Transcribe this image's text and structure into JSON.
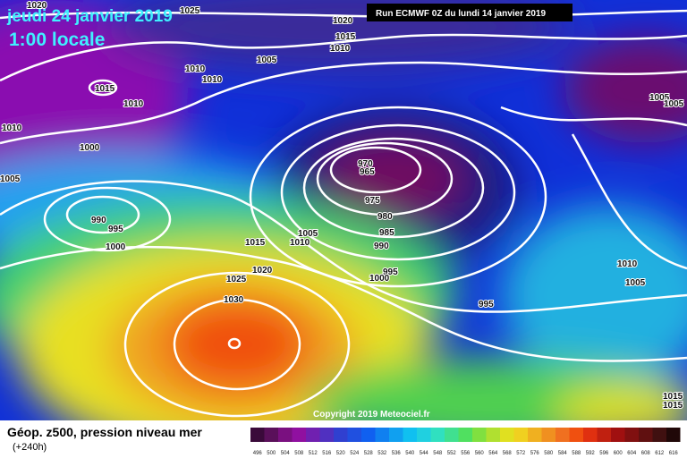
{
  "header": {
    "date": "jeudi 24 janvier 2019",
    "time": "1:00 locale",
    "run": "Run ECMWF 0Z du lundi 14 janvier 2019"
  },
  "copyright": "Copyright 2019 Meteociel.fr",
  "legend": {
    "title": "Géop. z500, pression niveau mer",
    "lead": "(+240h)",
    "scale": [
      496,
      500,
      504,
      508,
      512,
      516,
      520,
      524,
      528,
      532,
      536,
      540,
      544,
      548,
      552,
      556,
      560,
      564,
      568,
      572,
      576,
      580,
      584,
      588,
      592,
      596,
      600,
      604,
      608,
      612,
      616
    ]
  },
  "isobar_labels": [
    "1020",
    "1025",
    "1020",
    "1015",
    "1010",
    "1005",
    "1010",
    "1010",
    "1015",
    "1010",
    "1010",
    "1000",
    "1005",
    "970",
    "965",
    "975",
    "980",
    "985",
    "990",
    "990",
    "995",
    "1000",
    "1015",
    "1010",
    "1005",
    "1020",
    "995",
    "1000",
    "1025",
    "1030",
    "995",
    "1005",
    "1005",
    "1010",
    "1005",
    "1015",
    "1015"
  ]
}
